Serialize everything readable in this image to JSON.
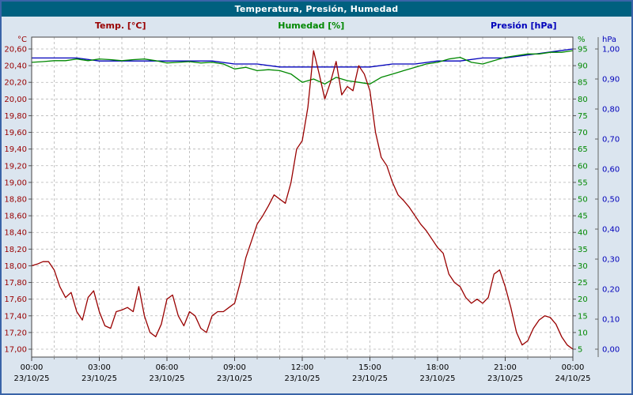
{
  "window": {
    "title": "Temperatura, Presión, Humedad"
  },
  "legend": [
    {
      "label": "Temp. [°C]",
      "color": "#990000"
    },
    {
      "label": "Humedad [%]",
      "color": "#008800"
    },
    {
      "label": "Presión [hPa]",
      "color": "#0000bb"
    }
  ],
  "chart_data": {
    "type": "line",
    "title": "Temperatura, Presión, Humedad",
    "grid": {
      "vertical_every_hours": 1,
      "horizontal_at_each_left_tick": true,
      "dashed": true
    },
    "x_axis": {
      "range_hours": [
        0,
        24
      ],
      "ticks": [
        {
          "time": "00:00",
          "date": "23/10/25"
        },
        {
          "time": "03:00",
          "date": "23/10/25"
        },
        {
          "time": "06:00",
          "date": "23/10/25"
        },
        {
          "time": "09:00",
          "date": "23/10/25"
        },
        {
          "time": "12:00",
          "date": "23/10/25"
        },
        {
          "time": "15:00",
          "date": "23/10/25"
        },
        {
          "time": "18:00",
          "date": "23/10/25"
        },
        {
          "time": "21:00",
          "date": "23/10/25"
        },
        {
          "time": "00:00",
          "date": "24/10/25"
        }
      ]
    },
    "y_axes": {
      "temp": {
        "unit": "°C",
        "color": "#990000",
        "min": 17.0,
        "max": 20.6,
        "tick_labels": [
          "20,60",
          "20,40",
          "20,20",
          "20,00",
          "19,80",
          "19,60",
          "19,40",
          "19,20",
          "19,00",
          "18,80",
          "18,60",
          "18,40",
          "18,20",
          "18,00",
          "17,80",
          "17,60",
          "17,40",
          "17,20",
          "17,00"
        ]
      },
      "hum": {
        "unit": "%",
        "color": "#008800",
        "min": 5,
        "max": 95,
        "tick_labels": [
          "95",
          "90",
          "85",
          "80",
          "75",
          "70",
          "65",
          "60",
          "55",
          "50",
          "45",
          "40",
          "35",
          "30",
          "25",
          "20",
          "15",
          "10",
          "5"
        ]
      },
      "pres": {
        "unit": "hPa",
        "color": "#0000bb",
        "min": 0.0,
        "max": 1.0,
        "tick_labels": [
          "1,00",
          "0,90",
          "0,80",
          "0,70",
          "0,60",
          "0,50",
          "0,40",
          "0,30",
          "0,20",
          "0,10",
          "0,00"
        ]
      }
    },
    "series": [
      {
        "name": "Presión [hPa]",
        "axis": "pres",
        "color": "#0000bb",
        "x_start": 0,
        "x_step": 1,
        "values": [
          0.97,
          0.97,
          0.97,
          0.96,
          0.96,
          0.96,
          0.96,
          0.96,
          0.96,
          0.95,
          0.95,
          0.94,
          0.94,
          0.94,
          0.94,
          0.94,
          0.95,
          0.95,
          0.96,
          0.96,
          0.97,
          0.97,
          0.98,
          0.99,
          1.0
        ]
      },
      {
        "name": "Humedad [%]",
        "axis": "hum",
        "color": "#008800",
        "x_start": 0,
        "x_step": 0.5,
        "values": [
          91.0,
          91.2,
          91.5,
          91.5,
          92.0,
          91.5,
          92.0,
          91.8,
          91.5,
          91.8,
          92.0,
          91.5,
          90.8,
          91.0,
          91.2,
          90.8,
          91.0,
          90.5,
          89.0,
          89.5,
          88.5,
          88.8,
          88.5,
          87.5,
          85.0,
          86.0,
          84.5,
          86.5,
          85.5,
          85.0,
          84.5,
          86.5,
          87.5,
          88.5,
          89.5,
          90.5,
          91.0,
          92.0,
          92.5,
          91.0,
          90.5,
          91.5,
          92.5,
          93.0,
          93.5,
          93.5,
          94.0,
          94.0,
          94.5
        ]
      },
      {
        "name": "Temp. [°C]",
        "axis": "temp",
        "color": "#990000",
        "x_start": 0,
        "x_step": 0.25,
        "values": [
          18.0,
          18.02,
          18.05,
          18.05,
          17.95,
          17.75,
          17.62,
          17.68,
          17.45,
          17.35,
          17.62,
          17.7,
          17.45,
          17.28,
          17.25,
          17.45,
          17.47,
          17.5,
          17.45,
          17.75,
          17.4,
          17.2,
          17.15,
          17.3,
          17.6,
          17.65,
          17.4,
          17.28,
          17.45,
          17.4,
          17.25,
          17.2,
          17.4,
          17.45,
          17.45,
          17.5,
          17.55,
          17.8,
          18.1,
          18.3,
          18.5,
          18.6,
          18.72,
          18.85,
          18.8,
          18.75,
          19.0,
          19.4,
          19.5,
          19.9,
          20.58,
          20.3,
          20.0,
          20.2,
          20.45,
          20.05,
          20.15,
          20.1,
          20.4,
          20.3,
          20.1,
          19.6,
          19.3,
          19.2,
          19.0,
          18.85,
          18.78,
          18.7,
          18.6,
          18.5,
          18.42,
          18.32,
          18.22,
          18.15,
          17.9,
          17.8,
          17.75,
          17.62,
          17.55,
          17.6,
          17.55,
          17.62,
          17.9,
          17.95,
          17.75,
          17.5,
          17.2,
          17.05,
          17.1,
          17.25,
          17.35,
          17.4,
          17.38,
          17.3,
          17.15,
          17.05,
          17.0
        ]
      }
    ]
  }
}
